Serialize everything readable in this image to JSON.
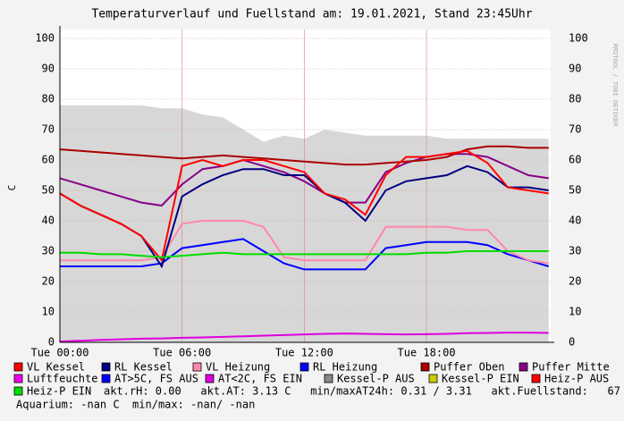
{
  "chart_data": {
    "type": "line",
    "title": "Temperaturverlauf und Fuellstand am: 19.01.2021, Stand 23:45Uhr",
    "y_label": "C",
    "watermark": "RRDTOOL / TOBI OETIKER",
    "x": [
      0,
      1,
      2,
      3,
      4,
      5,
      6,
      7,
      8,
      9,
      10,
      11,
      12,
      13,
      14,
      15,
      16,
      17,
      18,
      19,
      20,
      21,
      22,
      23,
      24
    ],
    "xlim": [
      0,
      24.1
    ],
    "xticks": [
      {
        "value": 0,
        "label": "Tue 00:00"
      },
      {
        "value": 6,
        "label": "Tue 06:00"
      },
      {
        "value": 12,
        "label": "Tue 12:00"
      },
      {
        "value": 18,
        "label": "Tue 18:00"
      }
    ],
    "ylim": [
      0,
      100
    ],
    "yticks": [
      0,
      10,
      20,
      30,
      40,
      50,
      60,
      70,
      80,
      90,
      100
    ],
    "grid": true,
    "series": [
      {
        "name": "VL Kessel",
        "color": "#ff0000",
        "values": [
          49,
          45,
          42,
          39,
          35,
          27,
          58,
          60,
          58,
          60,
          60,
          58,
          56,
          49,
          47,
          42,
          55,
          61,
          61,
          62,
          63,
          59,
          51,
          50,
          49
        ]
      },
      {
        "name": "RL Kessel",
        "color": "#000080",
        "values": [
          49,
          45,
          42,
          39,
          35,
          25,
          48,
          52,
          55,
          57,
          57,
          55,
          55,
          49,
          46,
          40,
          50,
          53,
          54,
          55,
          58,
          56,
          51,
          51,
          50
        ]
      },
      {
        "name": "VL Heizung",
        "color": "#ff88aa",
        "values": [
          27,
          27,
          27,
          27,
          27,
          28,
          39,
          40,
          40,
          40,
          38,
          28,
          27,
          27,
          27,
          27,
          38,
          38,
          38,
          38,
          37,
          37,
          30,
          27,
          26
        ]
      },
      {
        "name": "RL Heizung",
        "color": "#0000ff",
        "values": [
          25,
          25,
          25,
          25,
          25,
          26,
          31,
          32,
          33,
          34,
          30,
          26,
          24,
          24,
          24,
          24,
          31,
          32,
          33,
          33,
          33,
          32,
          29,
          27,
          25
        ]
      },
      {
        "name": "Puffer Oben",
        "color": "#aa0000",
        "values": [
          63.5,
          63,
          62.5,
          62,
          61.5,
          61,
          60.5,
          61,
          61.5,
          61,
          60.5,
          60,
          59.5,
          59,
          58.5,
          58.5,
          59,
          59.5,
          60,
          61,
          63.5,
          64.5,
          64.5,
          64,
          64
        ]
      },
      {
        "name": "Puffer Mitte",
        "color": "#880088",
        "values": [
          54,
          52,
          50,
          48,
          46,
          45,
          52,
          57,
          58,
          60,
          58,
          56,
          53,
          49,
          46,
          46,
          56,
          59,
          61,
          62,
          62,
          61,
          58,
          55,
          54
        ]
      },
      {
        "name": "Luftfeuchte",
        "color": "#ee00ee"
      },
      {
        "name": "AT>5C, FS AUS",
        "color": "#0000ff"
      },
      {
        "name": "AT<2C, FS EIN",
        "color": "#dd00dd",
        "values": [
          0.3,
          0.5,
          0.8,
          1,
          1.2,
          1.3,
          1.5,
          1.6,
          1.8,
          2,
          2.2,
          2.4,
          2.6,
          2.8,
          2.9,
          2.8,
          2.7,
          2.6,
          2.7,
          2.8,
          3,
          3.1,
          3.2,
          3.2,
          3.1
        ]
      },
      {
        "name": "Kessel-P AUS",
        "color": "#888888",
        "area_color": "#d7d7d7",
        "area": true,
        "values": [
          78,
          78,
          78,
          78,
          78,
          77,
          77,
          75,
          74,
          70,
          66,
          68,
          67,
          70,
          69,
          68,
          68,
          68,
          68,
          67,
          67,
          67,
          67,
          67,
          67
        ]
      },
      {
        "name": "Kessel-P EIN",
        "color": "#cccc00"
      },
      {
        "name": "Heiz-P AUS",
        "color": "#ff0000"
      },
      {
        "name": "Heiz-P EIN",
        "color": "#00dd00",
        "values": [
          29.5,
          29.5,
          29,
          29,
          28.5,
          28,
          28.5,
          29,
          29.5,
          29,
          29,
          29,
          29,
          29,
          29,
          29,
          29,
          29,
          29.5,
          29.5,
          30,
          30,
          30,
          30,
          30
        ]
      }
    ],
    "footer_lines": [
      "akt.rH: 0.00   akt.AT: 3.13 C   min/maxAT24h: 0.31 / 3.31   akt.Fuellstand:   67",
      "Aquarium: -nan C  min/max: -nan/ -nan"
    ]
  }
}
